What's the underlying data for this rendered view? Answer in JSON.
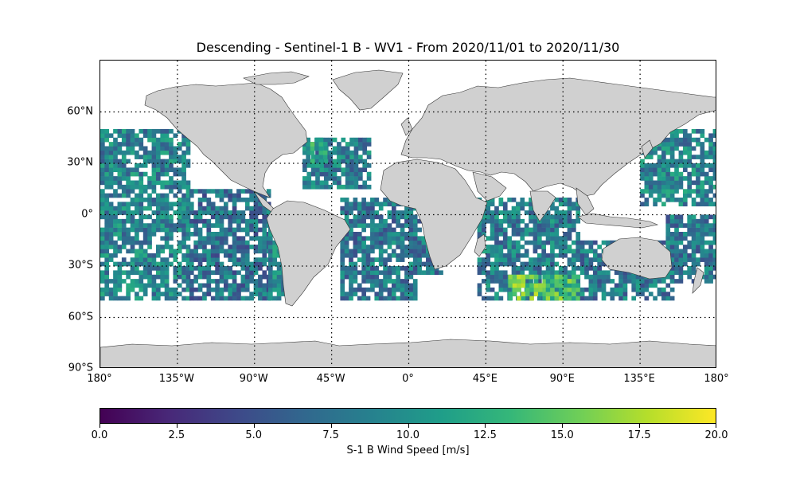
{
  "title": "Descending - Sentinel-1 B - WV1 - From 2020/11/01 to 2020/11/30",
  "lat_ticks": [
    {
      "value": 60,
      "label": "60°N"
    },
    {
      "value": 30,
      "label": "30°N"
    },
    {
      "value": 0,
      "label": "0°"
    },
    {
      "value": -30,
      "label": "30°S"
    },
    {
      "value": -60,
      "label": "60°S"
    },
    {
      "value": -90,
      "label": "90°S"
    }
  ],
  "lon_ticks": [
    {
      "value": -180,
      "label": "180°"
    },
    {
      "value": -135,
      "label": "135°W"
    },
    {
      "value": -90,
      "label": "90°W"
    },
    {
      "value": -45,
      "label": "45°W"
    },
    {
      "value": 0,
      "label": "0°"
    },
    {
      "value": 45,
      "label": "45°E"
    },
    {
      "value": 90,
      "label": "90°E"
    },
    {
      "value": 135,
      "label": "135°E"
    },
    {
      "value": 180,
      "label": "180°"
    }
  ],
  "map_extent": {
    "lon": [
      -180,
      180
    ],
    "lat": [
      -90,
      90
    ]
  },
  "colorbar": {
    "label": "S-1 B Wind Speed [m/s]",
    "vmin": 0,
    "vmax": 20,
    "ticks": [
      "0.0",
      "2.5",
      "5.0",
      "7.5",
      "10.0",
      "12.5",
      "15.0",
      "17.5",
      "20.0"
    ],
    "colormap": "viridis",
    "stops": [
      "#440154",
      "#482878",
      "#3e4989",
      "#31688e",
      "#26828e",
      "#1f9e89",
      "#35b779",
      "#6ece58",
      "#b5de2b",
      "#fde725"
    ]
  },
  "colors": {
    "land": "#d0d0d0",
    "coast": "#333333",
    "grid": "#000000"
  },
  "chart_data": {
    "type": "heatmap",
    "title": "Descending - Sentinel-1 B - WV1 - From 2020/11/01 to 2020/11/30",
    "xlabel": "",
    "ylabel": "",
    "xlim": [
      -180,
      180
    ],
    "ylim": [
      -90,
      90
    ],
    "zlabel": "S-1 B Wind Speed [m/s]",
    "zlim": [
      0,
      20
    ],
    "grid": true,
    "regions": [
      {
        "lon": [
          -180,
          -128
        ],
        "lat": [
          -50,
          50
        ],
        "mean_speed": 9
      },
      {
        "lon": [
          -128,
          -82
        ],
        "lat": [
          -50,
          15
        ],
        "mean_speed": 7.5
      },
      {
        "lon": [
          -82,
          -70
        ],
        "lat": [
          -50,
          -5
        ],
        "mean_speed": 9
      },
      {
        "lon": [
          -62,
          -22
        ],
        "lat": [
          15,
          45
        ],
        "mean_speed": 8.5
      },
      {
        "lon": [
          -40,
          5
        ],
        "lat": [
          -50,
          10
        ],
        "mean_speed": 8
      },
      {
        "lon": [
          5,
          20
        ],
        "lat": [
          -35,
          0
        ],
        "mean_speed": 8
      },
      {
        "lon": [
          40,
          100
        ],
        "lat": [
          -50,
          10
        ],
        "mean_speed": 8.5
      },
      {
        "lon": [
          58,
          80
        ],
        "lat": [
          -50,
          -35
        ],
        "mean_speed": 15
      },
      {
        "lon": [
          80,
          100
        ],
        "lat": [
          -50,
          -35
        ],
        "mean_speed": 14
      },
      {
        "lon": [
          100,
          155
        ],
        "lat": [
          -50,
          -15
        ],
        "mean_speed": 8
      },
      {
        "lon": [
          135,
          180
        ],
        "lat": [
          5,
          50
        ],
        "mean_speed": 9
      },
      {
        "lon": [
          150,
          180
        ],
        "lat": [
          -40,
          0
        ],
        "mean_speed": 8
      },
      {
        "lon": [
          -60,
          -48
        ],
        "lat": [
          30,
          45
        ],
        "mean_speed": 12
      }
    ]
  }
}
